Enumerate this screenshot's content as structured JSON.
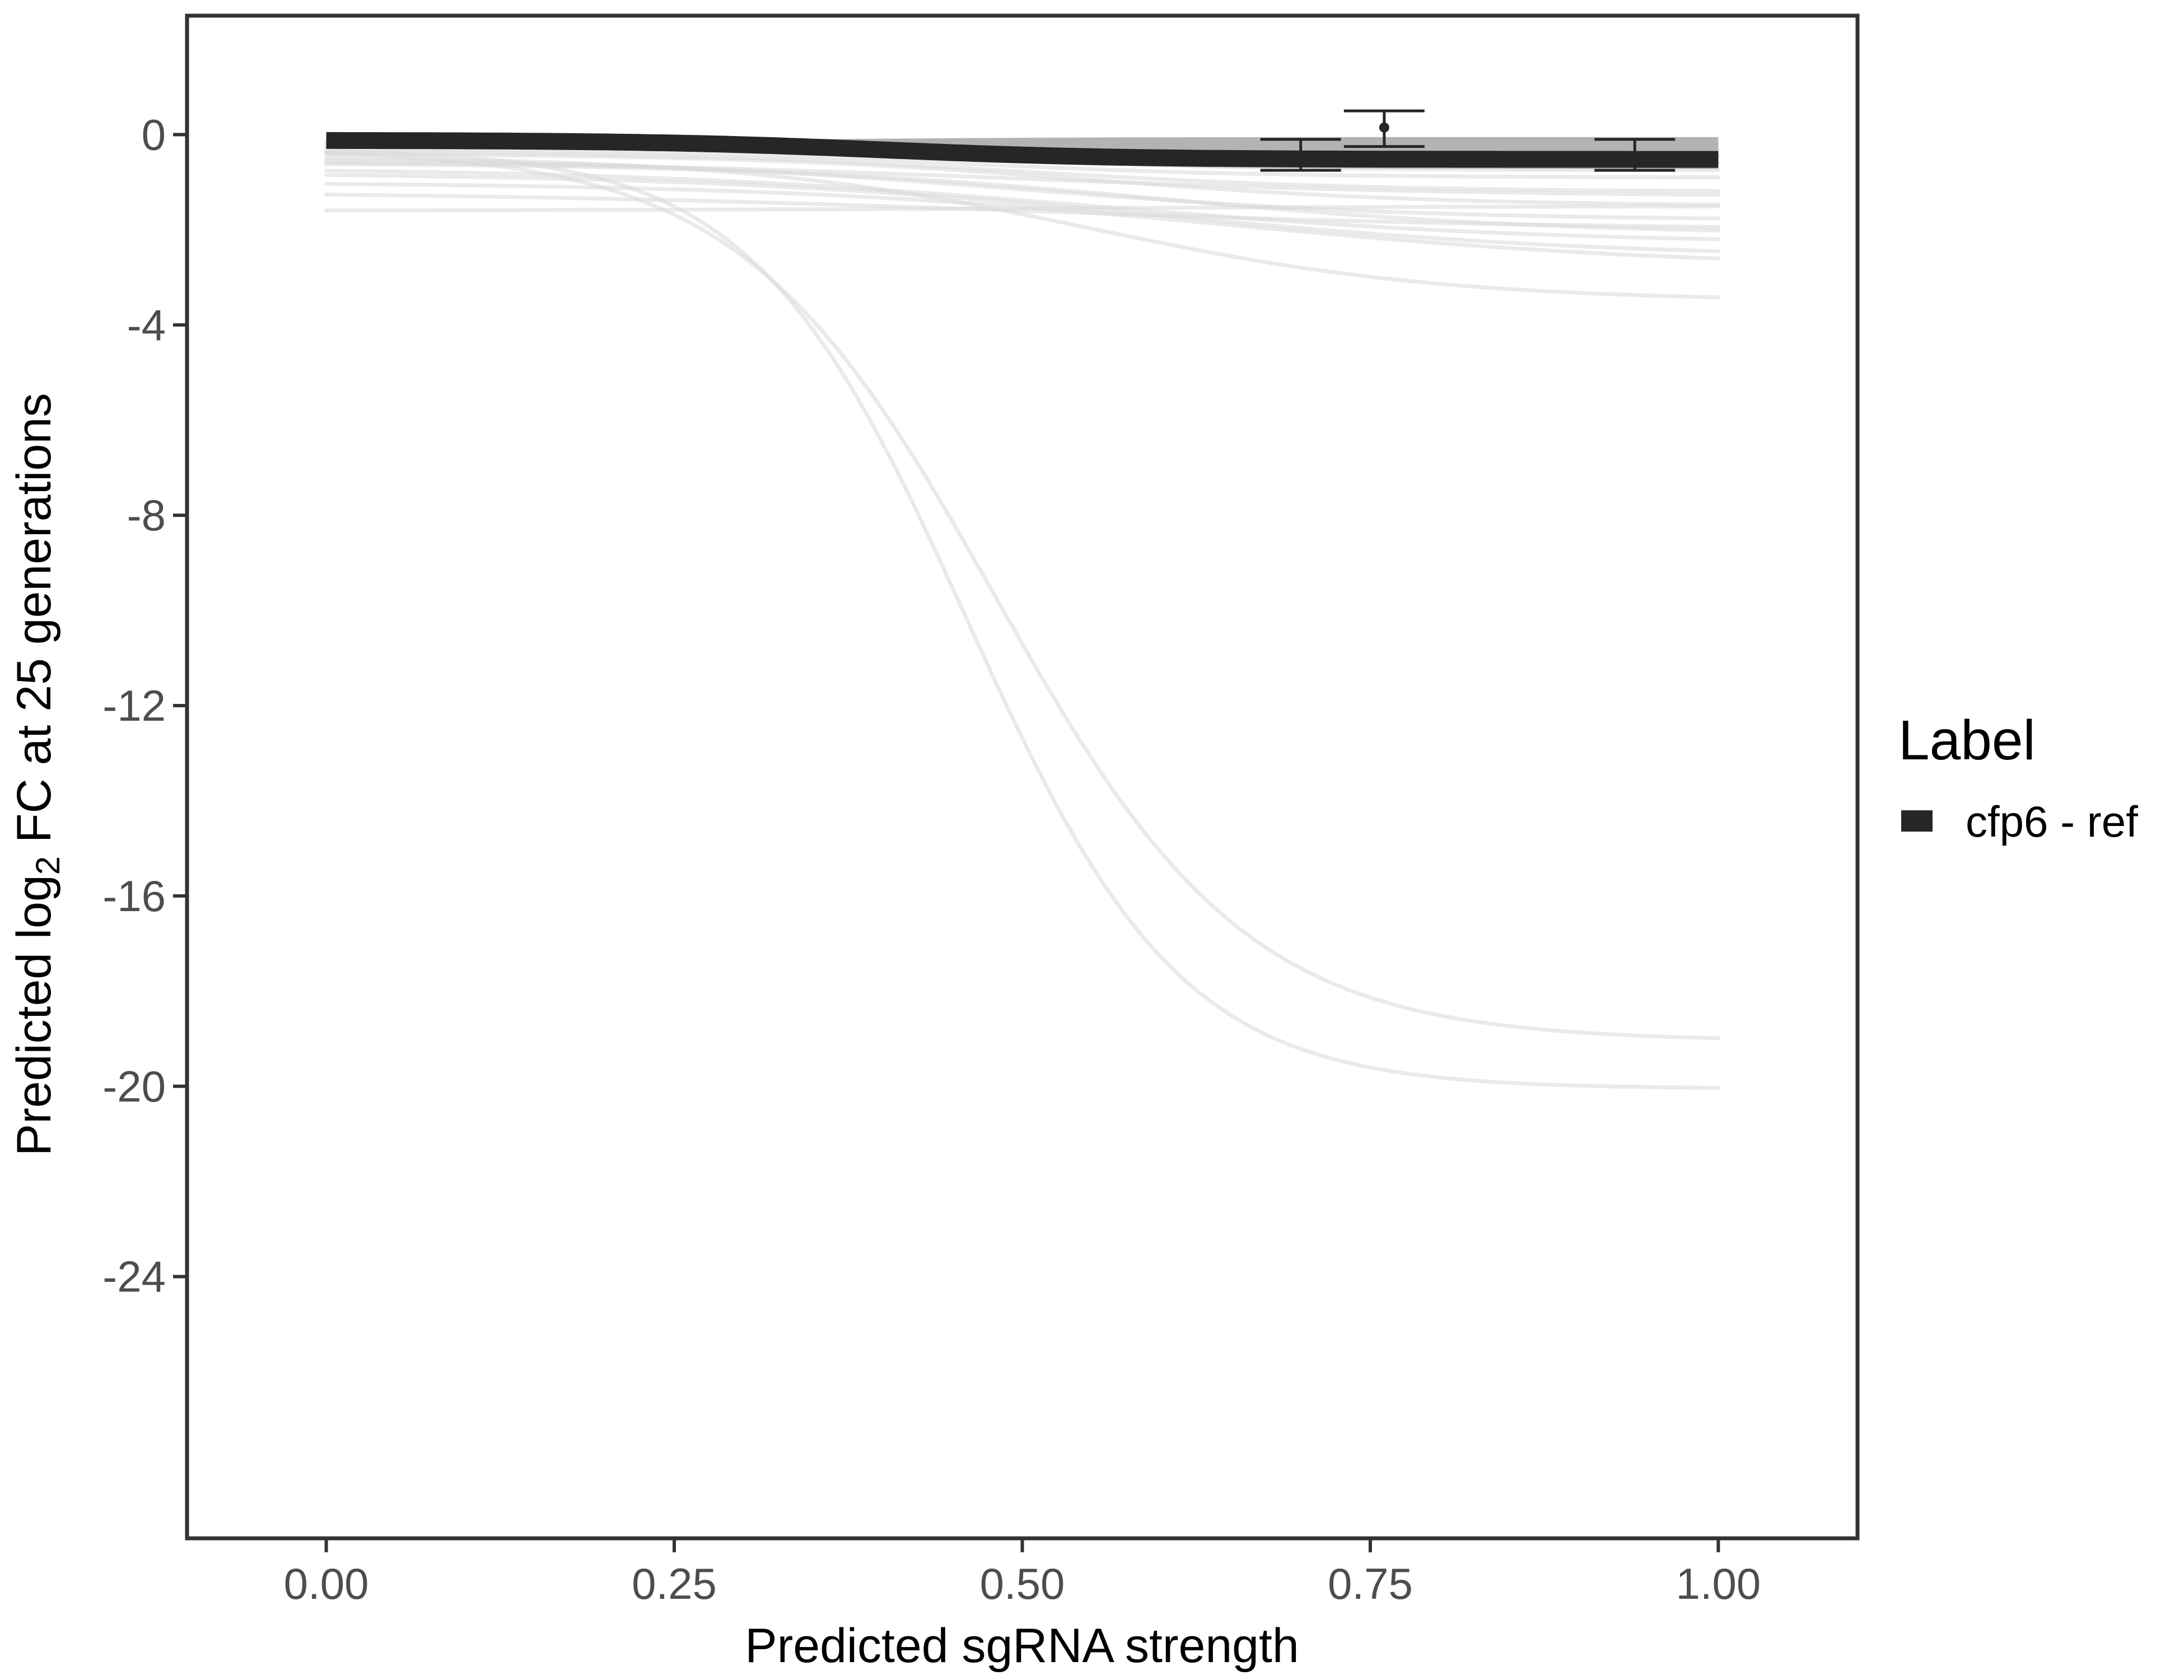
{
  "chart_data": {
    "type": "line",
    "xlabel": "Predicted sgRNA strength",
    "ylabel_prefix": "Predicted  log",
    "ylabel_subscript": "2",
    "ylabel_suffix": " FC at 25 generations",
    "xlim": [
      -0.1,
      1.1
    ],
    "ylim": [
      -29.5,
      2.5
    ],
    "x_ticks": [
      0.0,
      0.25,
      0.5,
      0.75,
      1.0
    ],
    "x_tick_labels": [
      "0.00",
      "0.25",
      "0.50",
      "0.75",
      "1.00"
    ],
    "y_ticks": [
      0,
      -4,
      -8,
      -12,
      -16,
      -20,
      -24
    ],
    "y_tick_labels": [
      "0",
      "-4",
      "-8",
      "-12",
      "-16",
      "-20",
      "-24"
    ],
    "grid": false,
    "legend": {
      "title": "Label",
      "position": "right",
      "entries": [
        {
          "label": "cfp6 - ref",
          "color": "#262626"
        }
      ]
    },
    "highlight_series": {
      "name": "cfp6 - ref",
      "color": "#262626",
      "start": -0.12,
      "end": -0.52,
      "midpoint": 0.4,
      "steepness": 12,
      "band_lower_end": -0.72,
      "band_upper_end": -0.05
    },
    "background_curves": [
      {
        "start": -0.3,
        "end": -0.9,
        "midpoint": 0.45,
        "steepness": 9
      },
      {
        "start": -0.35,
        "end": -1.2,
        "midpoint": 0.5,
        "steepness": 8
      },
      {
        "start": -0.4,
        "end": -1.5,
        "midpoint": 0.55,
        "steepness": 8
      },
      {
        "start": -0.5,
        "end": -1.8,
        "midpoint": 0.5,
        "steepness": 7
      },
      {
        "start": -0.6,
        "end": -2.1,
        "midpoint": 0.6,
        "steepness": 7
      },
      {
        "start": -0.7,
        "end": -2.3,
        "midpoint": 0.55,
        "steepness": 6
      },
      {
        "start": -0.8,
        "end": -2.6,
        "midpoint": 0.6,
        "steepness": 6
      },
      {
        "start": -1.0,
        "end": -2.8,
        "midpoint": 0.65,
        "steepness": 6
      },
      {
        "start": -0.45,
        "end": -3.5,
        "midpoint": 0.55,
        "steepness": 8
      },
      {
        "start": -1.2,
        "end": -2.0,
        "midpoint": 0.5,
        "steepness": 5
      },
      {
        "start": -1.6,
        "end": -1.5,
        "midpoint": 0.5,
        "steepness": 5
      },
      {
        "start": -0.2,
        "end": -0.6,
        "midpoint": 0.5,
        "steepness": 8
      },
      {
        "start": -0.25,
        "end": -0.75,
        "midpoint": 0.45,
        "steepness": 9
      },
      {
        "start": -0.15,
        "end": -0.45,
        "midpoint": 0.4,
        "steepness": 10
      },
      {
        "start": -0.55,
        "end": -1.3,
        "midpoint": 0.5,
        "steepness": 6
      },
      {
        "start": -0.3,
        "end": -19.05,
        "midpoint": 0.48,
        "steepness": 11
      },
      {
        "start": -0.3,
        "end": -20.05,
        "midpoint": 0.46,
        "steepness": 13
      }
    ],
    "error_bars": [
      {
        "x": 0.7,
        "y_low": -0.75,
        "y_high": -0.1
      },
      {
        "x": 0.76,
        "y": 0.15,
        "y_low": -0.25,
        "y_high": 0.5
      },
      {
        "x": 0.94,
        "y_low": -0.75,
        "y_high": -0.1
      }
    ]
  },
  "colors": {
    "panel_border": "#333333",
    "tick": "#333333",
    "background_curve": "#d9d9d9",
    "band": "#a6a6a6",
    "error_bar": "#262626"
  }
}
